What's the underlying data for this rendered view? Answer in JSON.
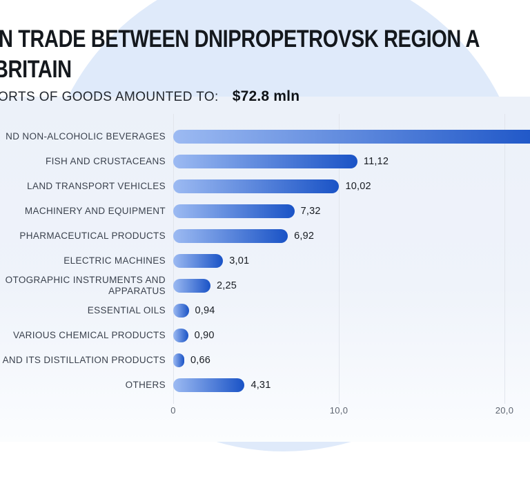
{
  "header": {
    "title_line1": "N TRADE BETWEEN DNIPROPETROVSK REGION A",
    "title_line2": "BRITAIN",
    "subtitle_label": "ORTS OF GOODS AMOUNTED TO:",
    "subtitle_value": "$72.8 mln"
  },
  "colors": {
    "bar_gradient_start": "#9cbaf2",
    "bar_gradient_end": "#1a53c6",
    "background_ellipse": "#dfeafa",
    "panel_background": "#ecf1f9",
    "gridline": "#e1e5ec",
    "title_text": "#14181d",
    "label_text": "#3a414d",
    "tick_text": "#5d6470"
  },
  "chart_data": {
    "type": "bar",
    "orientation": "horizontal",
    "categories": [
      [
        "ND NON-ALCOHOLIC BEVERAGES"
      ],
      [
        "FISH AND CRUSTACEANS"
      ],
      [
        "LAND TRANSPORT VEHICLES"
      ],
      [
        "MACHINERY AND EQUIPMENT"
      ],
      [
        "PHARMACEUTICAL PRODUCTS"
      ],
      [
        "ELECTRIC MACHINES"
      ],
      [
        "OTOGRAPHIC INSTRUMENTS AND",
        "APPARATUS"
      ],
      [
        "ESSENTIAL OILS"
      ],
      [
        "VARIOUS CHEMICAL PRODUCTS"
      ],
      [
        "AND ITS DISTILLATION PRODUCTS"
      ],
      [
        "OTHERS"
      ]
    ],
    "values": [
      null,
      11.12,
      10.02,
      7.32,
      6.92,
      3.01,
      2.25,
      0.94,
      0.9,
      0.66,
      4.31
    ],
    "value_labels": [
      "",
      "11,12",
      "10,02",
      "7,32",
      "6,92",
      "3,01",
      "2,25",
      "0,94",
      "0,90",
      "0,66",
      "4,31"
    ],
    "first_bar_cut_off_at_right_edge": true,
    "x_ticks": [
      {
        "label": "0",
        "value": 0
      },
      {
        "label": "10,0",
        "value": 10
      },
      {
        "label": "20,0",
        "value": 20
      }
    ],
    "xlim": [
      0,
      21.5
    ],
    "grid": "vertical",
    "decimal_separator": ","
  }
}
